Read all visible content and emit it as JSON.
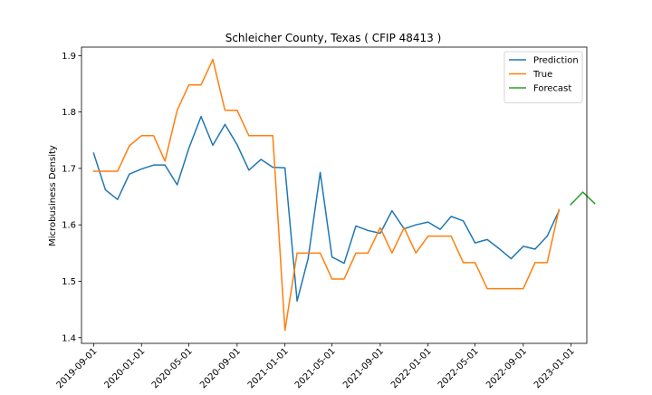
{
  "chart_data": {
    "type": "line",
    "title": "Schleicher County, Texas ( CFIP 48413 )",
    "xlabel": "",
    "ylabel": "Microbusiness Density",
    "xlim": [
      "2019-08-01",
      "2023-02-10"
    ],
    "ylim": [
      1.39,
      1.915
    ],
    "xticks": [
      "2019-09-01",
      "2020-01-01",
      "2020-05-01",
      "2020-09-01",
      "2021-01-01",
      "2021-05-01",
      "2021-09-01",
      "2022-01-01",
      "2022-05-01",
      "2022-09-01",
      "2023-01-01"
    ],
    "yticks": [
      1.4,
      1.5,
      1.6,
      1.7,
      1.8,
      1.9
    ],
    "ytick_labels": [
      "1.4",
      "1.5",
      "1.6",
      "1.7",
      "1.8",
      "1.9"
    ],
    "grid": false,
    "legend_position": "top-right",
    "series": [
      {
        "name": "Prediction",
        "color": "#1f77b4",
        "x": [
          "2019-09-01",
          "2019-10-01",
          "2019-11-01",
          "2019-12-01",
          "2020-01-01",
          "2020-02-01",
          "2020-03-01",
          "2020-04-01",
          "2020-05-01",
          "2020-06-01",
          "2020-07-01",
          "2020-08-01",
          "2020-09-01",
          "2020-10-01",
          "2020-11-01",
          "2020-12-01",
          "2021-01-01",
          "2021-02-01",
          "2021-03-01",
          "2021-04-01",
          "2021-05-01",
          "2021-06-01",
          "2021-07-01",
          "2021-08-01",
          "2021-09-01",
          "2021-10-01",
          "2021-11-01",
          "2021-12-01",
          "2022-01-01",
          "2022-02-01",
          "2022-03-01",
          "2022-04-01",
          "2022-05-01",
          "2022-06-01",
          "2022-07-01",
          "2022-08-01",
          "2022-09-01",
          "2022-10-01",
          "2022-11-01",
          "2022-12-01"
        ],
        "values": [
          1.727,
          1.662,
          1.645,
          1.69,
          1.699,
          1.706,
          1.706,
          1.671,
          1.736,
          1.792,
          1.741,
          1.778,
          1.742,
          1.697,
          1.716,
          1.702,
          1.701,
          1.465,
          1.54,
          1.693,
          1.543,
          1.532,
          1.598,
          1.59,
          1.585,
          1.625,
          1.593,
          1.6,
          1.605,
          1.592,
          1.615,
          1.607,
          1.568,
          1.574,
          1.558,
          1.54,
          1.562,
          1.557,
          1.58,
          1.625
        ]
      },
      {
        "name": "True",
        "color": "#ff7f0e",
        "x": [
          "2019-09-01",
          "2019-10-01",
          "2019-11-01",
          "2019-12-01",
          "2020-01-01",
          "2020-02-01",
          "2020-03-01",
          "2020-04-01",
          "2020-05-01",
          "2020-06-01",
          "2020-07-01",
          "2020-08-01",
          "2020-09-01",
          "2020-10-01",
          "2020-11-01",
          "2020-12-01",
          "2021-01-01",
          "2021-02-01",
          "2021-03-01",
          "2021-04-01",
          "2021-05-01",
          "2021-06-01",
          "2021-07-01",
          "2021-08-01",
          "2021-09-01",
          "2021-10-01",
          "2021-11-01",
          "2021-12-01",
          "2022-01-01",
          "2022-02-01",
          "2022-03-01",
          "2022-04-01",
          "2022-05-01",
          "2022-06-01",
          "2022-07-01",
          "2022-08-01",
          "2022-09-01",
          "2022-10-01",
          "2022-11-01",
          "2022-12-01"
        ],
        "values": [
          1.695,
          1.695,
          1.695,
          1.74,
          1.758,
          1.758,
          1.713,
          1.803,
          1.848,
          1.848,
          1.893,
          1.803,
          1.803,
          1.758,
          1.758,
          1.758,
          1.413,
          1.55,
          1.55,
          1.55,
          1.504,
          1.504,
          1.55,
          1.55,
          1.595,
          1.55,
          1.595,
          1.55,
          1.58,
          1.58,
          1.58,
          1.533,
          1.533,
          1.487,
          1.487,
          1.487,
          1.487,
          1.533,
          1.533,
          1.627
        ]
      },
      {
        "name": "Forecast",
        "color": "#2ca02c",
        "x": [
          "2022-12-31",
          "2023-01-31",
          "2023-03-02"
        ],
        "values": [
          1.636,
          1.658,
          1.638
        ]
      }
    ]
  }
}
